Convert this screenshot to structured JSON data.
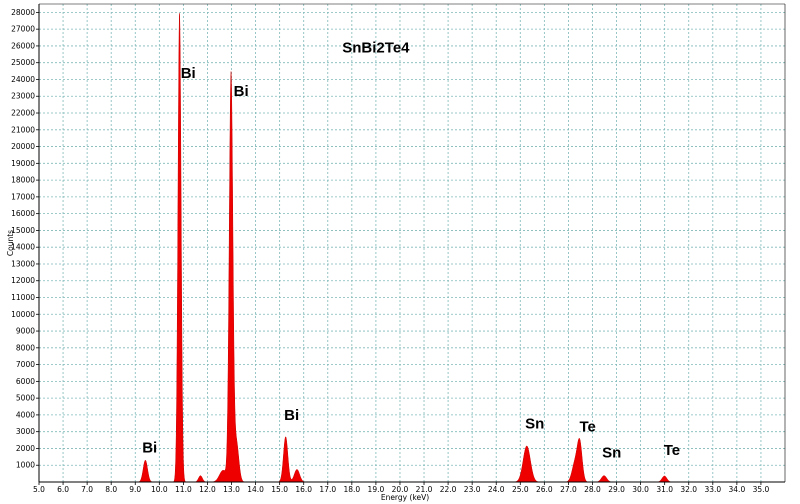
{
  "chart_data": {
    "type": "area",
    "title": "SnBi2Te4",
    "xlabel": "Energy (keV)",
    "ylabel": "Counts",
    "xlim": [
      5.0,
      36.0
    ],
    "ylim": [
      0,
      28500
    ],
    "x_ticks": [
      "5.0",
      "6.0",
      "7.0",
      "8.0",
      "9.0",
      "10.0",
      "11.0",
      "12.0",
      "13.0",
      "14.0",
      "15.0",
      "16.0",
      "17.0",
      "18.0",
      "19.0",
      "20.0",
      "21.0",
      "22.0",
      "23.0",
      "24.0",
      "25.0",
      "26.0",
      "27.0",
      "28.0",
      "29.0",
      "30.0",
      "31.0",
      "32.0",
      "33.0",
      "34.0",
      "35.0"
    ],
    "y_ticks": [
      "1000",
      "2000",
      "3000",
      "4000",
      "5000",
      "6000",
      "7000",
      "8000",
      "9000",
      "10000",
      "11000",
      "12000",
      "13000",
      "14000",
      "15000",
      "16000",
      "17000",
      "18000",
      "19000",
      "20000",
      "21000",
      "22000",
      "23000",
      "24000",
      "25000",
      "26000",
      "27000",
      "28000"
    ],
    "grid": true,
    "colors": {
      "fill": "#ee0000",
      "grid": "#7fb8b8",
      "background": "#ffffff"
    },
    "peaks": [
      {
        "center": 9.42,
        "height": 1300,
        "width": 0.09
      },
      {
        "center": 10.84,
        "height": 28000,
        "width": 0.065
      },
      {
        "center": 11.71,
        "height": 380,
        "width": 0.08
      },
      {
        "center": 12.65,
        "height": 700,
        "width": 0.15
      },
      {
        "center": 12.98,
        "height": 24200,
        "width": 0.075
      },
      {
        "center": 13.2,
        "height": 2400,
        "width": 0.1
      },
      {
        "center": 15.25,
        "height": 2700,
        "width": 0.09
      },
      {
        "center": 15.72,
        "height": 750,
        "width": 0.11
      },
      {
        "center": 25.27,
        "height": 2150,
        "width": 0.15
      },
      {
        "center": 27.27,
        "height": 1100,
        "width": 0.12
      },
      {
        "center": 27.47,
        "height": 2300,
        "width": 0.1
      },
      {
        "center": 28.48,
        "height": 380,
        "width": 0.11
      },
      {
        "center": 30.99,
        "height": 360,
        "width": 0.1
      }
    ],
    "annotations": [
      {
        "text": "Bi",
        "x": 9.6,
        "y": 1750
      },
      {
        "text": "Bi",
        "x": 11.2,
        "y": 24100
      },
      {
        "text": "Bi",
        "x": 13.4,
        "y": 23000
      },
      {
        "text": "Bi",
        "x": 15.5,
        "y": 3700
      },
      {
        "text": "SnBi2Te4",
        "x": 19.0,
        "y": 25600
      },
      {
        "text": "Sn",
        "x": 25.6,
        "y": 3200
      },
      {
        "text": "Te",
        "x": 27.8,
        "y": 3000
      },
      {
        "text": "Sn",
        "x": 28.8,
        "y": 1450
      },
      {
        "text": "Te",
        "x": 31.3,
        "y": 1600
      }
    ]
  }
}
